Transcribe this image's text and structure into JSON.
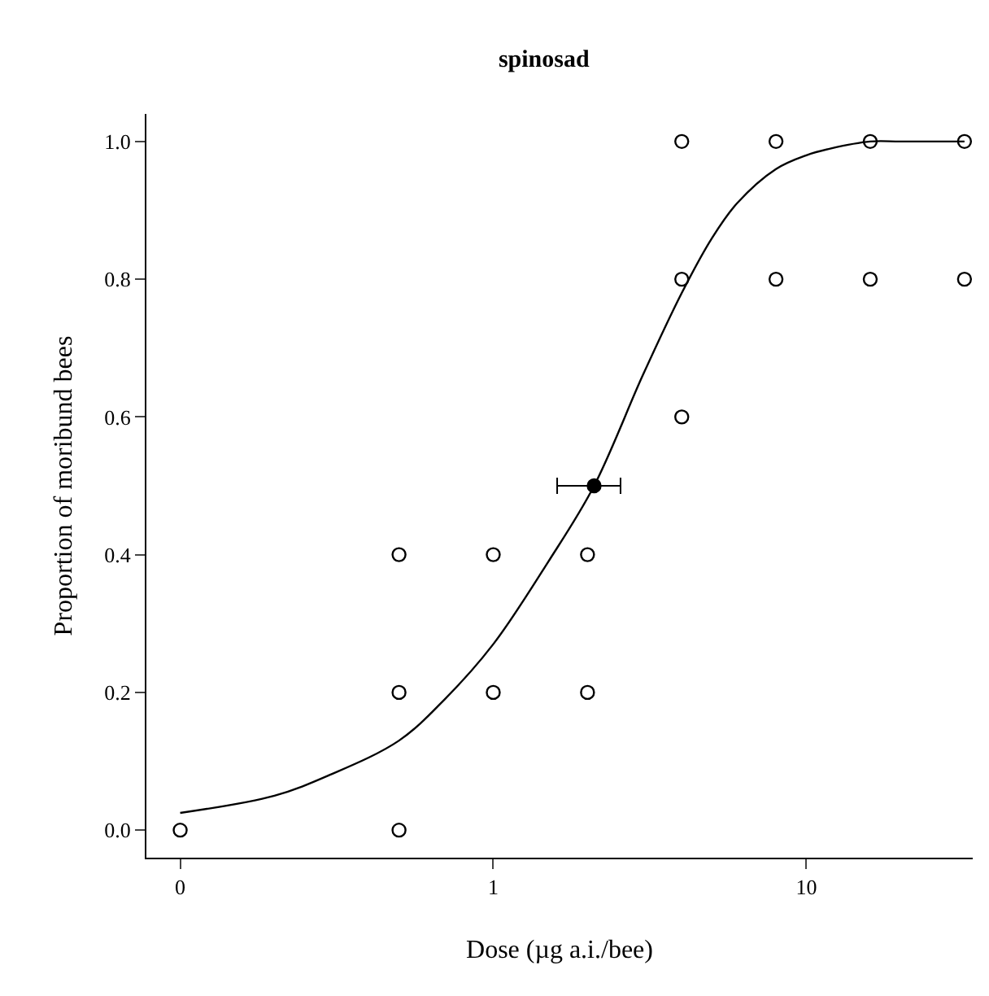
{
  "chart_data": {
    "type": "scatter",
    "title": "spinosad",
    "xlabel": "Dose (µg a.i./bee)",
    "ylabel": "Proportion of moribund bees",
    "log": "x",
    "xlim": [
      0.078,
      34
    ],
    "xticks": [
      {
        "value": 0.1,
        "label": "0"
      },
      1,
      10
    ],
    "ylim": [
      -0.04,
      1.04
    ],
    "yticks": [
      {
        "value": 0,
        "label": "0.0"
      },
      0.2,
      0.4,
      0.6,
      0.8,
      {
        "value": 1,
        "label": "1.0"
      }
    ],
    "series": [
      {
        "color": "#000000",
        "marker": "circle",
        "x": [
          0.1,
          0.5,
          0.5,
          0.5,
          1,
          1,
          2,
          2,
          4,
          4,
          4,
          8,
          8,
          16,
          16,
          32,
          32
        ],
        "values": [
          0,
          0,
          0.2,
          0.4,
          0.2,
          0.4,
          0.2,
          0.4,
          0.6,
          0.8,
          1,
          0.8,
          1,
          0.8,
          1,
          0.8,
          1
        ]
      },
      {
        "color": "#000000",
        "marker": "circle",
        "x": [
          2.1
        ],
        "values": [
          0.5
        ],
        "xerrors": [
          [
            1.6,
            2.55
          ]
        ]
      },
      {
        "type": "line",
        "color": "#000000",
        "x": [
          0.1,
          0.2,
          0.3,
          0.5,
          0.7,
          1,
          1.5,
          2.1,
          3,
          4,
          5,
          6,
          8,
          10,
          12,
          16,
          20,
          32
        ],
        "values": [
          0.025,
          0.05,
          0.08,
          0.13,
          0.19,
          0.27,
          0.39,
          0.5,
          0.66,
          0.78,
          0.86,
          0.91,
          0.96,
          0.98,
          0.99,
          1.0,
          1.0,
          1.0
        ]
      }
    ]
  }
}
